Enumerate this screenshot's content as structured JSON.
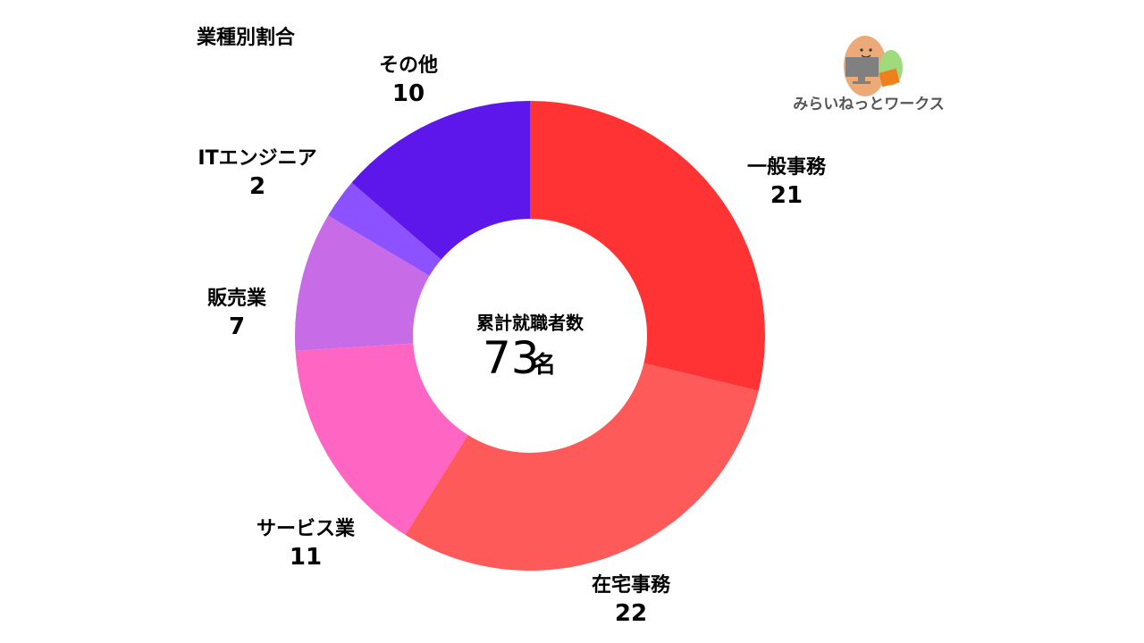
{
  "chart_data": {
    "type": "pie",
    "donut": true,
    "title": "業種別割合",
    "categories": [
      "一般事務",
      "在宅事務",
      "サービス業",
      "販売業",
      "ITエンジニア",
      "その他"
    ],
    "values": [
      21,
      22,
      11,
      7,
      2,
      10
    ],
    "colors": [
      "#FF3333",
      "#FF5A5A",
      "#FF66C4",
      "#C86BE6",
      "#8C52FF",
      "#5E17EB"
    ],
    "start": "top",
    "direction": "clockwise",
    "center_caption": "累計就職者数",
    "center_value": "73",
    "center_unit": "名"
  },
  "logo": {
    "text": "みらいねっとワークス"
  }
}
